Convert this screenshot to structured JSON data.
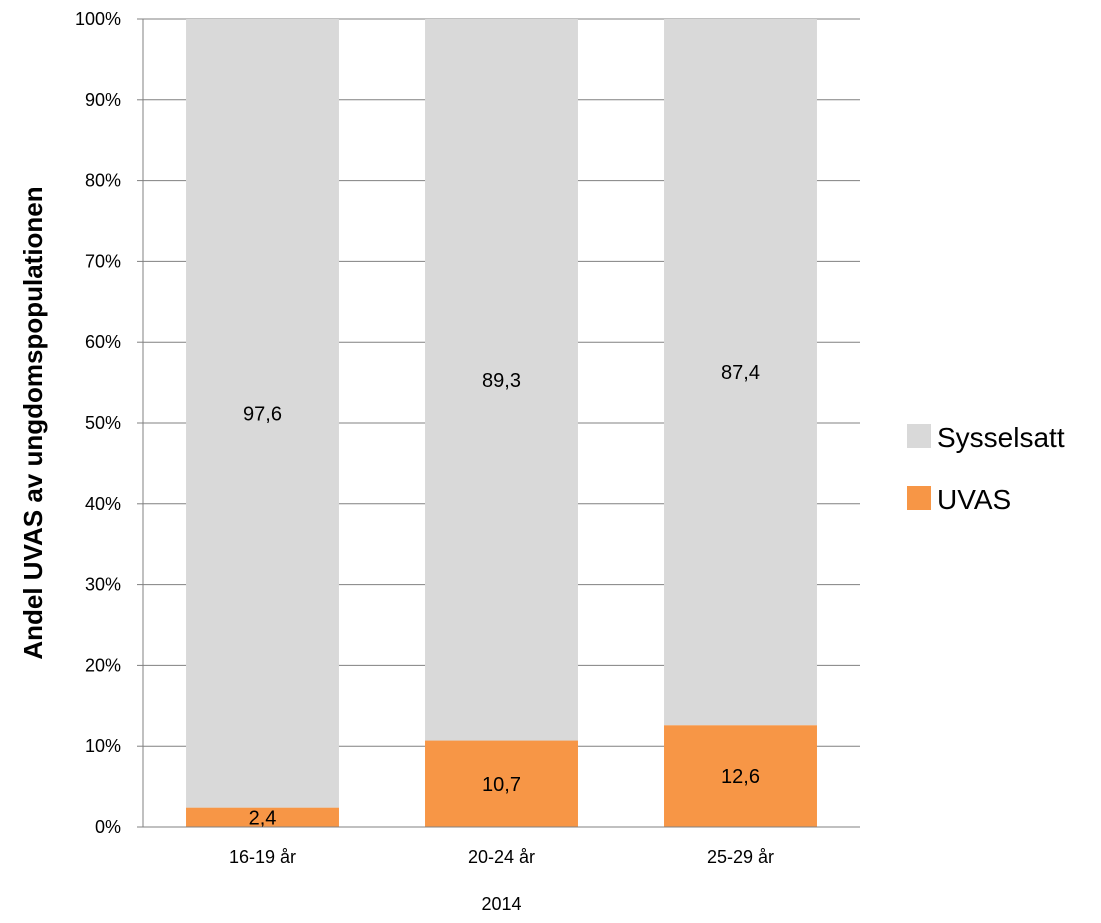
{
  "chart_data": {
    "type": "bar",
    "stacked": true,
    "categories": [
      "16-19 år",
      "20-24 år",
      "25-29 år"
    ],
    "x_group_label": "2014",
    "ylabel": "Andel UVAS av ungdomspopulationen",
    "ylim": [
      0,
      100
    ],
    "yticks": [
      "0%",
      "10%",
      "20%",
      "30%",
      "40%",
      "50%",
      "60%",
      "70%",
      "80%",
      "90%",
      "100%"
    ],
    "grid": true,
    "legend_position": "right",
    "series": [
      {
        "name": "UVAS",
        "color": "#f79646",
        "values": [
          2.4,
          10.7,
          12.6
        ],
        "labels": [
          "2,4",
          "10,7",
          "12,6"
        ]
      },
      {
        "name": "Sysselsatt",
        "color": "#d9d9d9",
        "values": [
          97.6,
          89.3,
          87.4
        ],
        "labels": [
          "97,6",
          "89,3",
          "87,4"
        ]
      }
    ]
  }
}
